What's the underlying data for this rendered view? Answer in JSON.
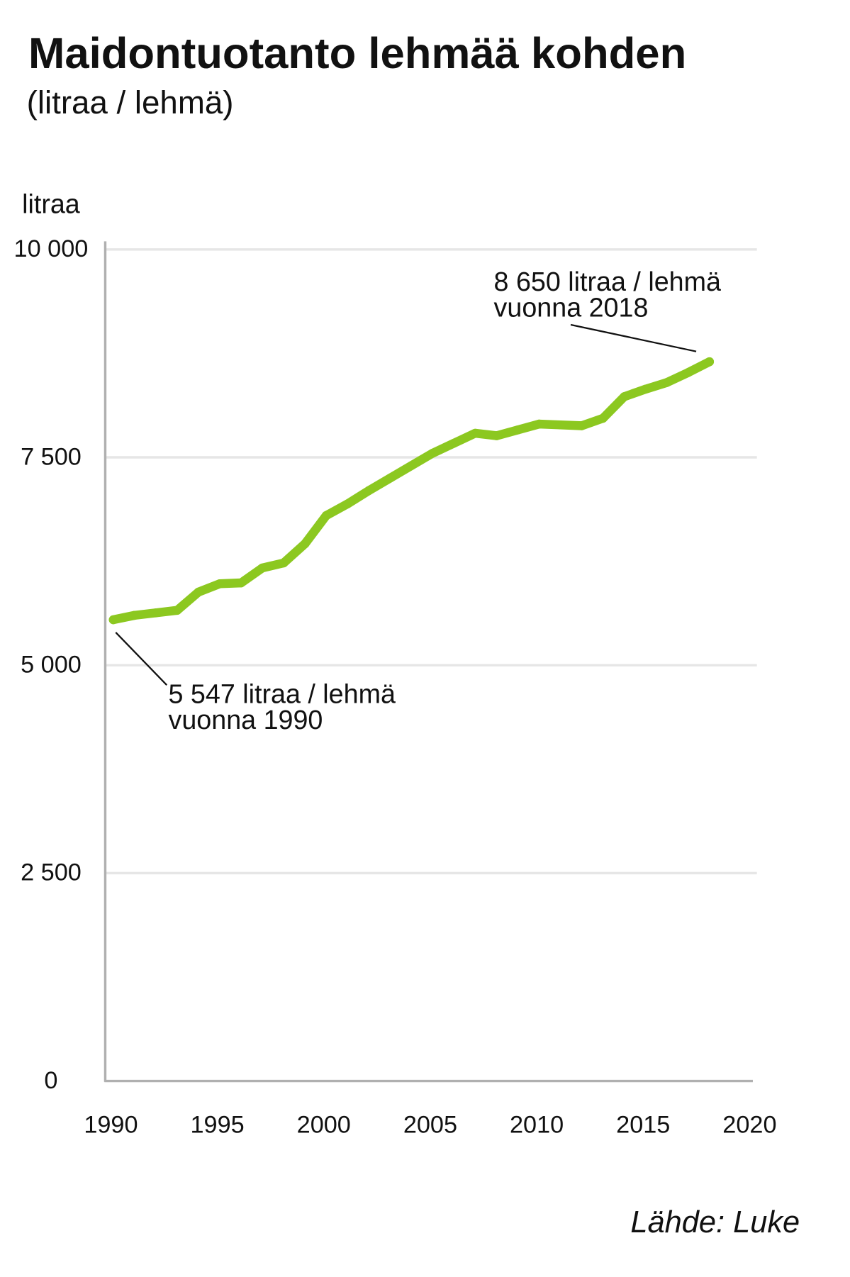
{
  "chart_data": {
    "type": "line",
    "title": "Maidontuotanto lehmää kohden",
    "subtitle": "(litraa / lehmä)",
    "ylabel": "litraa",
    "xlabel": "",
    "xlim": [
      1990,
      2020
    ],
    "ylim": [
      0,
      10000
    ],
    "xticks": [
      1990,
      1995,
      2000,
      2005,
      2010,
      2015,
      2020
    ],
    "xtick_labels": [
      "1990",
      "1995",
      "2000",
      "2005",
      "2010",
      "2015",
      "2020"
    ],
    "yticks": [
      0,
      2500,
      5000,
      7500,
      10000
    ],
    "ytick_labels": [
      "0",
      "2 500",
      "5 000",
      "7 500",
      "10 000"
    ],
    "grid": true,
    "x": [
      1990,
      1991,
      1992,
      1993,
      1994,
      1995,
      1996,
      1997,
      1998,
      1999,
      2000,
      2001,
      2002,
      2003,
      2004,
      2005,
      2006,
      2007,
      2008,
      2009,
      2010,
      2011,
      2012,
      2013,
      2014,
      2015,
      2016,
      2017,
      2018
    ],
    "series": [
      {
        "values": [
          5547,
          5600,
          5630,
          5660,
          5880,
          5980,
          5990,
          6170,
          6230,
          6460,
          6800,
          6940,
          7100,
          7250,
          7400,
          7550,
          7670,
          7790,
          7760,
          7830,
          7900,
          7890,
          7880,
          7970,
          8230,
          8320,
          8400,
          8520,
          8650
        ],
        "color": "#8cc820"
      }
    ],
    "annotations": [
      {
        "x": 2018,
        "y": 8650,
        "lines": [
          "8 650 litraa / lehmä",
          "vuonna 2018"
        ]
      },
      {
        "x": 1990,
        "y": 5547,
        "lines": [
          "5 547 litraa / lehmä",
          "vuonna 1990"
        ]
      }
    ],
    "source": "Lähde: Luke"
  },
  "colors": {
    "line": "#8cc820",
    "grid": "#e6e6e6",
    "axis": "#b0b0b0",
    "text": "#111111",
    "leader": "#111111"
  }
}
